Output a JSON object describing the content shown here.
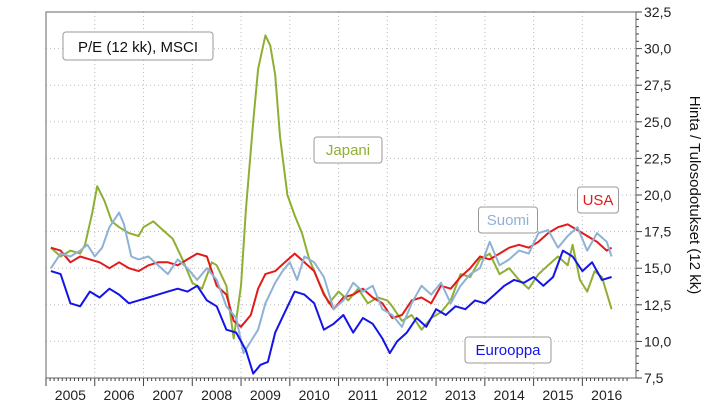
{
  "chart_data": {
    "type": "line",
    "title": "P/E (12 kk), MSCI",
    "ylabel": "Hinta / Tulosodotukset (12 kk)",
    "ylim": [
      7.5,
      32.5
    ],
    "yticks": [
      7.5,
      10.0,
      12.5,
      15.0,
      17.5,
      20.0,
      22.5,
      25.0,
      27.5,
      30.0,
      32.5
    ],
    "ytick_labels": [
      "7,5",
      "10,0",
      "12,5",
      "15,0",
      "17,5",
      "20,0",
      "22,5",
      "25,0",
      "27,5",
      "30,0",
      "32,5"
    ],
    "xlim": [
      2004.5,
      2016.6
    ],
    "year_labels": [
      "2005",
      "2006",
      "2007",
      "2008",
      "2009",
      "2010",
      "2011",
      "2012",
      "2013",
      "2014",
      "2015",
      "2016"
    ],
    "grid": true,
    "series": [
      {
        "name": "Japani",
        "color": "#8faf32",
        "x": [
          2004.6,
          2004.8,
          2005.0,
          2005.2,
          2005.3,
          2005.45,
          2005.55,
          2005.7,
          2005.85,
          2006.0,
          2006.2,
          2006.4,
          2006.5,
          2006.7,
          2006.9,
          2007.1,
          2007.3,
          2007.5,
          2007.7,
          2007.9,
          2008.0,
          2008.2,
          2008.35,
          2008.5,
          2008.6,
          2008.75,
          2008.85,
          2009.0,
          2009.1,
          2009.2,
          2009.3,
          2009.45,
          2009.6,
          2009.75,
          2009.9,
          2010.1,
          2010.3,
          2010.5,
          2010.7,
          2010.9,
          2011.1,
          2011.3,
          2011.5,
          2011.6,
          2011.8,
          2012.0,
          2012.2,
          2012.4,
          2012.6,
          2012.8,
          2013.0,
          2013.2,
          2013.4,
          2013.6,
          2013.8,
          2014.0,
          2014.2,
          2014.4,
          2014.6,
          2014.8,
          2015.0,
          2015.2,
          2015.3,
          2015.45,
          2015.6,
          2015.75,
          2015.9,
          2016.1
        ],
        "values": [
          16.4,
          15.8,
          16.2,
          16.0,
          16.6,
          18.8,
          20.6,
          19.6,
          18.2,
          17.8,
          17.4,
          17.2,
          17.8,
          18.2,
          17.6,
          17.0,
          15.6,
          14.0,
          13.6,
          15.4,
          15.2,
          13.8,
          10.2,
          13.8,
          19.0,
          25.0,
          28.6,
          30.9,
          30.2,
          28.2,
          24.0,
          20.0,
          18.6,
          17.4,
          15.6,
          14.0,
          12.6,
          13.4,
          12.8,
          13.6,
          12.6,
          13.0,
          12.8,
          12.4,
          11.4,
          11.8,
          10.8,
          11.6,
          12.0,
          12.8,
          14.6,
          14.4,
          15.6,
          16.0,
          14.6,
          15.0,
          14.2,
          13.6,
          14.6,
          15.2,
          15.8,
          15.2,
          16.6,
          14.2,
          13.4,
          14.8,
          14.4,
          12.2
        ]
      },
      {
        "name": "USA",
        "color": "#e21a1a",
        "x": [
          2004.6,
          2004.8,
          2005.0,
          2005.2,
          2005.4,
          2005.6,
          2005.8,
          2006.0,
          2006.2,
          2006.4,
          2006.6,
          2006.8,
          2007.0,
          2007.2,
          2007.4,
          2007.6,
          2007.8,
          2008.0,
          2008.2,
          2008.35,
          2008.5,
          2008.7,
          2008.85,
          2009.0,
          2009.2,
          2009.4,
          2009.6,
          2009.8,
          2010.0,
          2010.2,
          2010.4,
          2010.6,
          2010.8,
          2011.0,
          2011.2,
          2011.4,
          2011.6,
          2011.8,
          2012.0,
          2012.2,
          2012.4,
          2012.6,
          2012.8,
          2013.0,
          2013.2,
          2013.4,
          2013.6,
          2013.8,
          2014.0,
          2014.2,
          2014.4,
          2014.6,
          2014.8,
          2015.0,
          2015.2,
          2015.4,
          2015.6,
          2015.8,
          2016.0,
          2016.1
        ],
        "values": [
          16.4,
          16.2,
          15.4,
          15.8,
          15.6,
          15.4,
          15.0,
          15.4,
          15.0,
          14.8,
          15.2,
          15.4,
          15.4,
          15.2,
          15.6,
          16.0,
          15.8,
          13.8,
          13.2,
          11.4,
          11.0,
          11.8,
          13.6,
          14.6,
          14.8,
          15.4,
          16.0,
          15.4,
          14.8,
          13.2,
          12.2,
          13.0,
          13.2,
          13.6,
          13.0,
          12.6,
          11.6,
          11.8,
          12.8,
          13.0,
          12.6,
          13.8,
          13.6,
          14.4,
          15.0,
          15.8,
          15.6,
          16.0,
          16.4,
          16.6,
          16.4,
          16.8,
          17.4,
          17.8,
          18.0,
          17.6,
          17.2,
          16.8,
          16.2,
          16.4
        ]
      },
      {
        "name": "Suomi",
        "color": "#8eb2d6",
        "x": [
          2004.6,
          2004.8,
          2005.0,
          2005.2,
          2005.35,
          2005.5,
          2005.65,
          2005.8,
          2006.0,
          2006.1,
          2006.25,
          2006.4,
          2006.6,
          2006.8,
          2007.0,
          2007.2,
          2007.4,
          2007.6,
          2007.8,
          2008.0,
          2008.2,
          2008.4,
          2008.55,
          2008.7,
          2008.85,
          2009.0,
          2009.2,
          2009.35,
          2009.5,
          2009.65,
          2009.8,
          2010.0,
          2010.2,
          2010.4,
          2010.6,
          2010.8,
          2011.0,
          2011.2,
          2011.4,
          2011.6,
          2011.8,
          2012.0,
          2012.2,
          2012.4,
          2012.6,
          2012.8,
          2013.0,
          2013.2,
          2013.4,
          2013.6,
          2013.8,
          2014.0,
          2014.2,
          2014.4,
          2014.6,
          2014.8,
          2015.0,
          2015.2,
          2015.4,
          2015.6,
          2015.8,
          2016.0,
          2016.1
        ],
        "values": [
          15.0,
          16.0,
          15.8,
          16.2,
          16.6,
          15.8,
          16.4,
          17.8,
          18.8,
          18.0,
          15.8,
          15.6,
          15.8,
          15.2,
          14.6,
          15.6,
          15.0,
          14.2,
          15.0,
          14.2,
          12.4,
          11.6,
          9.2,
          10.0,
          10.8,
          12.6,
          14.0,
          14.8,
          15.4,
          14.2,
          15.8,
          15.4,
          14.4,
          12.2,
          12.8,
          14.0,
          13.4,
          13.8,
          12.2,
          11.8,
          11.0,
          12.6,
          13.8,
          13.2,
          14.0,
          12.6,
          13.8,
          14.6,
          15.0,
          16.8,
          15.2,
          15.6,
          16.2,
          16.0,
          17.4,
          17.6,
          16.4,
          17.2,
          17.8,
          16.2,
          17.4,
          16.8,
          15.8
        ]
      },
      {
        "name": "Eurooppa",
        "color": "#1414e6",
        "x": [
          2004.6,
          2004.8,
          2005.0,
          2005.2,
          2005.4,
          2005.6,
          2005.8,
          2006.0,
          2006.2,
          2006.4,
          2006.6,
          2006.8,
          2007.0,
          2007.2,
          2007.4,
          2007.6,
          2007.8,
          2008.0,
          2008.2,
          2008.4,
          2008.6,
          2008.75,
          2008.9,
          2009.05,
          2009.2,
          2009.4,
          2009.6,
          2009.8,
          2010.0,
          2010.2,
          2010.4,
          2010.6,
          2010.8,
          2011.0,
          2011.2,
          2011.4,
          2011.55,
          2011.7,
          2011.9,
          2012.1,
          2012.3,
          2012.5,
          2012.7,
          2012.9,
          2013.1,
          2013.3,
          2013.5,
          2013.7,
          2013.9,
          2014.1,
          2014.3,
          2014.5,
          2014.7,
          2014.9,
          2015.1,
          2015.3,
          2015.5,
          2015.7,
          2015.9,
          2016.1
        ],
        "values": [
          14.8,
          14.6,
          12.6,
          12.4,
          13.4,
          13.0,
          13.6,
          13.2,
          12.6,
          12.8,
          13.0,
          13.2,
          13.4,
          13.6,
          13.4,
          13.8,
          12.8,
          12.4,
          10.8,
          10.6,
          9.4,
          7.8,
          8.4,
          8.6,
          10.6,
          12.0,
          13.4,
          13.2,
          12.6,
          10.8,
          11.2,
          11.8,
          10.6,
          11.6,
          11.2,
          10.2,
          9.2,
          10.0,
          10.6,
          11.6,
          11.0,
          12.2,
          11.8,
          12.4,
          12.2,
          12.8,
          12.6,
          13.2,
          13.8,
          14.2,
          14.0,
          14.4,
          13.8,
          14.4,
          16.2,
          15.8,
          14.8,
          15.4,
          14.2,
          14.4
        ]
      }
    ],
    "annotations": [
      {
        "text": "Japani",
        "color": "#8faf32",
        "series": "Japani"
      },
      {
        "text": "USA",
        "color": "#e21a1a",
        "series": "USA"
      },
      {
        "text": "Suomi",
        "color": "#8eb2d6",
        "series": "Suomi"
      },
      {
        "text": "Eurooppa",
        "color": "#1414e6",
        "series": "Eurooppa"
      }
    ]
  }
}
